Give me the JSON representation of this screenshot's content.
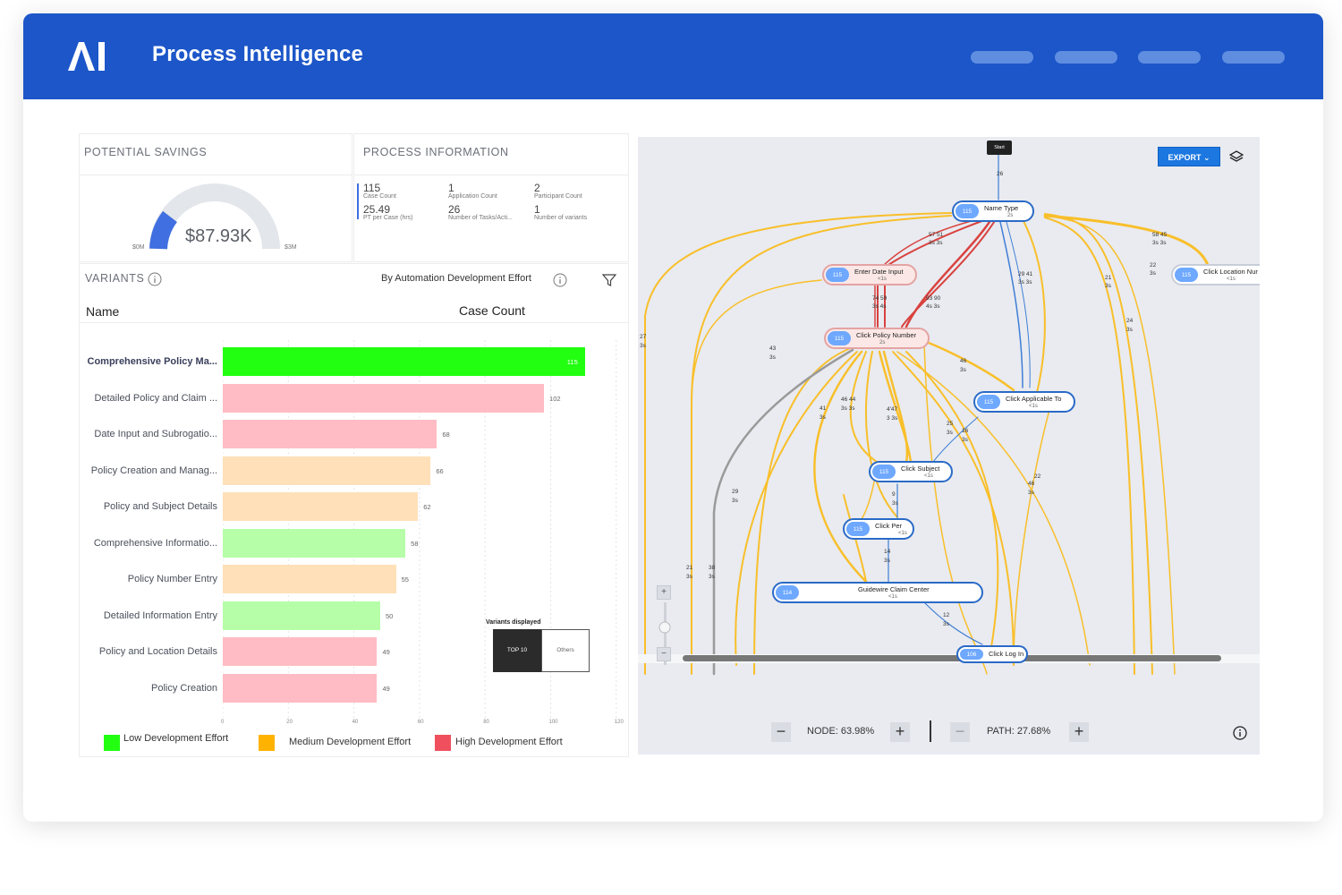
{
  "header": {
    "app_title": "Process Intelligence",
    "logo_icon": "ai-logo-icon",
    "nav_pills": [
      "",
      "",
      "",
      ""
    ]
  },
  "savings": {
    "title": "POTENTIAL SAVINGS",
    "value": "$87.93K",
    "min_label": "$0M",
    "max_label": "$3M",
    "fill_fraction": 0.03
  },
  "process_info": {
    "title": "PROCESS INFORMATION",
    "stats": [
      {
        "value": "115",
        "label": "Case Count"
      },
      {
        "value": "1",
        "label": "Application Count"
      },
      {
        "value": "2",
        "label": "Participant Count"
      },
      {
        "value": "25.49",
        "label": "PT per Case (hrs)"
      },
      {
        "value": "26",
        "label": "Number of Tasks/Acti..."
      },
      {
        "value": "1",
        "label": "Number of variants"
      }
    ]
  },
  "variants": {
    "title": "VARIANTS",
    "group_by": "By Automation Development Effort",
    "col_name": "Name",
    "col_count": "Case Count",
    "rows": [
      {
        "name": "Comprehensive Policy Ma...",
        "count": 115,
        "effort": "low-strong"
      },
      {
        "name": "Detailed Policy and Claim ...",
        "count": 102,
        "effort": "high"
      },
      {
        "name": "Date Input and Subrogatio...",
        "count": 68,
        "effort": "high"
      },
      {
        "name": "Policy Creation and Manag...",
        "count": 66,
        "effort": "medium"
      },
      {
        "name": "Policy and Subject Details",
        "count": 62,
        "effort": "medium"
      },
      {
        "name": "Comprehensive Informatio...",
        "count": 58,
        "effort": "low"
      },
      {
        "name": "Policy Number Entry",
        "count": 55,
        "effort": "medium"
      },
      {
        "name": "Detailed Information Entry",
        "count": 50,
        "effort": "low"
      },
      {
        "name": "Policy and Location Details",
        "count": 49,
        "effort": "high"
      },
      {
        "name": "Policy Creation",
        "count": 49,
        "effort": "high"
      }
    ],
    "axis_ticks": [
      "0",
      "20",
      "40",
      "60",
      "80",
      "100",
      "120"
    ],
    "axis_max": 120,
    "variants_displayed_label": "Variants displayed",
    "toggle_top": "TOP 10",
    "toggle_others": "Others"
  },
  "legend": {
    "low": "Low Development Effort",
    "medium": "Medium Development Effort",
    "high": "High  Development Effort"
  },
  "colors": {
    "topbar": "#1c56c9",
    "low_strong": "#22ff11",
    "low": "#b6ffa8",
    "medium": "#ffe0b8",
    "high": "#ffbcc4",
    "legend_low": "#22ff11",
    "legend_medium": "#ffb300",
    "legend_high": "#f0505e",
    "flow_yellow": "#f9bf2a",
    "flow_red": "#d9423f",
    "flow_blue": "#3f7ed6",
    "flow_gray": "#9a9a9a"
  },
  "graph": {
    "start_label": "Start",
    "export_label": "EXPORT",
    "nodes": [
      {
        "id": "name-type",
        "count": "115",
        "name": "Name Type",
        "dur": "2s"
      },
      {
        "id": "enter-date-input",
        "count": "115",
        "name": "Enter Date Input",
        "dur": "<1s"
      },
      {
        "id": "click-policy-number",
        "count": "115",
        "name": "Click Policy Number",
        "dur": "2s"
      },
      {
        "id": "click-location",
        "count": "115",
        "name": "Click Location Nur",
        "dur": "<1s"
      },
      {
        "id": "click-applicable-to",
        "count": "115",
        "name": "Click Applicable To",
        "dur": "<1s"
      },
      {
        "id": "click-subject",
        "count": "115",
        "name": "Click Subject",
        "dur": "<1s"
      },
      {
        "id": "click-per",
        "count": "115",
        "name": "Click Per",
        "dur": "<1s"
      },
      {
        "id": "guidewire",
        "count": "114",
        "name": "Guidewire Claim Center",
        "dur": "<1s"
      },
      {
        "id": "click-log-in",
        "count": "106",
        "name": "Click Log In",
        "dur": ""
      }
    ],
    "edge_labels": [
      "26",
      "57 51",
      "3s 3s",
      "29 41",
      "3s 3s",
      "58 45",
      "3s 3s",
      "21",
      "3s",
      "22",
      "3s",
      "74 59",
      "3s 4s",
      "93 90",
      "4s 3s",
      "27",
      "3s",
      "43",
      "3s",
      "24",
      "3s",
      "46",
      "3s",
      "41",
      "3s",
      "46 44",
      "3s 3s",
      "4'47",
      "3 3s",
      "25",
      "3s",
      "16",
      "3s",
      "22",
      "46",
      "3s",
      "29",
      "3s",
      "9",
      "3s",
      "14",
      "3s",
      "21",
      "3s",
      "38",
      "3s",
      "12",
      "3s"
    ],
    "node_zoom_label": "NODE: 63.98%",
    "path_zoom_label": "PATH: 27.68%",
    "minus": "−",
    "plus": "+"
  }
}
